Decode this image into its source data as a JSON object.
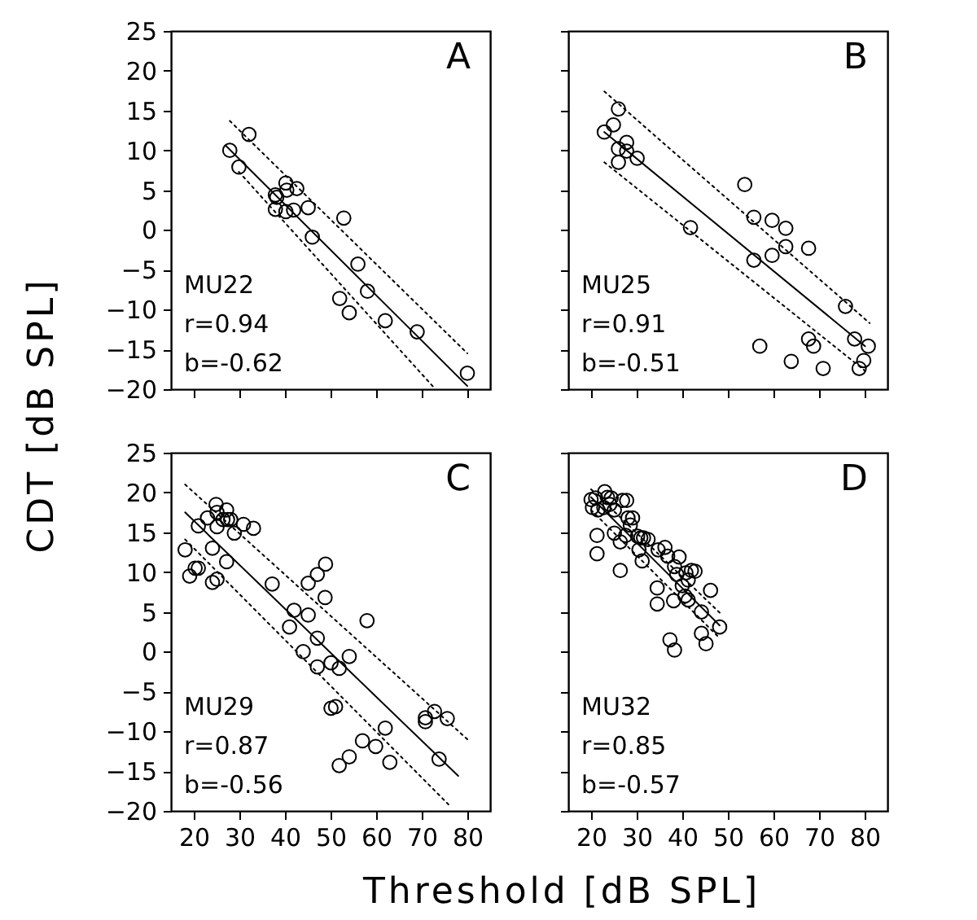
{
  "chart_data": [
    {
      "type": "scatter",
      "ylabel": "CDT [dB SPL]",
      "annotations": [
        "A",
        "MU22",
        "r=0.94",
        "b=-0.62"
      ],
      "xlim": [
        15,
        85
      ],
      "ylim": [
        -20,
        25
      ],
      "xticks": [
        20,
        30,
        40,
        50,
        60,
        70,
        80
      ],
      "yticks": [
        -20,
        -15,
        -10,
        -5,
        0,
        5,
        10,
        15,
        20,
        25
      ],
      "tick_labels": "y",
      "series": [
        {
          "type": "scatter",
          "marker": "circle",
          "color": "#000000",
          "x": [
            27.9,
            32.1,
            29.9,
            37.9,
            38.2,
            40.2,
            40.4,
            42.6,
            37.9,
            40.2,
            41.9,
            45.1,
            52.9,
            46.0,
            56.0,
            58.1,
            52.0,
            54.1,
            62.0,
            69.0,
            80.0
          ],
          "values": [
            10.0,
            12.0,
            7.9,
            4.4,
            4.1,
            5.9,
            5.0,
            5.2,
            2.6,
            2.3,
            2.5,
            2.8,
            1.5,
            -0.9,
            -4.3,
            -7.7,
            -8.6,
            -10.4,
            -11.4,
            -12.8,
            -18.0
          ]
        },
        {
          "type": "line",
          "line_style": "solid",
          "color": "#000000",
          "x": [
            27,
            80
          ],
          "values": [
            10.6,
            -19.6
          ]
        },
        {
          "type": "line",
          "line_style": "dotted",
          "color": "#000000",
          "x": [
            27.9,
            80
          ],
          "values": [
            13.7,
            -15.5
          ]
        },
        {
          "type": "line",
          "line_style": "dotted",
          "color": "#000000",
          "x": [
            29.9,
            73
          ],
          "values": [
            7.3,
            -20
          ]
        }
      ]
    },
    {
      "type": "scatter",
      "annotations": [
        "B",
        "MU25",
        "r=0.91",
        "b=-0.51"
      ],
      "xlim": [
        15,
        85
      ],
      "ylim": [
        -20,
        25
      ],
      "xticks": [
        20,
        30,
        40,
        50,
        60,
        70,
        80
      ],
      "yticks": [
        -20,
        -15,
        -10,
        -5,
        0,
        5,
        10,
        15,
        20,
        25
      ],
      "tick_labels": false,
      "series": [
        {
          "type": "scatter",
          "marker": "circle",
          "color": "#000000",
          "x": [
            26.0,
            24.9,
            22.9,
            27.8,
            26.0,
            27.8,
            30.1,
            26.0,
            53.7,
            41.8,
            55.7,
            59.7,
            62.7,
            62.7,
            67.7,
            59.7,
            55.7,
            75.8,
            67.7,
            68.8,
            77.8,
            80.8,
            79.8,
            78.8,
            70.9,
            63.9,
            57.0
          ],
          "values": [
            15.2,
            13.2,
            12.3,
            11.0,
            10.2,
            9.9,
            9.0,
            8.5,
            5.7,
            0.3,
            1.6,
            1.2,
            0.2,
            -2.1,
            -2.3,
            -3.2,
            -3.8,
            -9.6,
            -13.7,
            -14.6,
            -13.7,
            -14.6,
            -16.4,
            -17.4,
            -17.4,
            -16.5,
            -14.6
          ]
        },
        {
          "type": "line",
          "line_style": "solid",
          "color": "#000000",
          "x": [
            22.9,
            80.1
          ],
          "values": [
            12.3,
            -14.6
          ]
        },
        {
          "type": "line",
          "line_style": "dotted",
          "color": "#000000",
          "x": [
            22.9,
            81.1
          ],
          "values": [
            17.4,
            -11.7
          ]
        },
        {
          "type": "line",
          "line_style": "dotted",
          "color": "#000000",
          "x": [
            22.9,
            80.1
          ],
          "values": [
            8.5,
            -17.7
          ]
        }
      ]
    },
    {
      "type": "scatter",
      "xlabel": "Threshold [dB SPL]",
      "annotations": [
        "C",
        "MU29",
        "r=0.87",
        "b=-0.56"
      ],
      "xlim": [
        15,
        85
      ],
      "ylim": [
        -20,
        25
      ],
      "xticks": [
        20,
        30,
        40,
        50,
        60,
        70,
        80
      ],
      "yticks": [
        -20,
        -15,
        -10,
        -5,
        0,
        5,
        10,
        15,
        20,
        25
      ],
      "series": [
        {
          "type": "scatter",
          "marker": "circle",
          "color": "#000000",
          "x": [
            18.1,
            19.1,
            20.3,
            21.0,
            21.0,
            23.0,
            24.9,
            25.1,
            25.1,
            26.4,
            27.2,
            27.4,
            28.1,
            28.9,
            30.9,
            33.1,
            24.1,
            27.2,
            24.1,
            25.1,
            37.2,
            45.1,
            47.1,
            48.9,
            48.8,
            58.0,
            42.0,
            45.1,
            41.0,
            47.1,
            44.0,
            47.1,
            50.1,
            51.9,
            54.1,
            50.1,
            51.1,
            57.0,
            59.9,
            62.0,
            63.0,
            54.1,
            51.9,
            70.8,
            70.8,
            72.8,
            75.6,
            73.8
          ],
          "values": [
            12.8,
            9.5,
            10.5,
            10.5,
            15.8,
            16.8,
            18.5,
            17.5,
            15.7,
            16.6,
            17.8,
            16.6,
            16.6,
            14.9,
            16.0,
            15.5,
            13.0,
            11.3,
            8.7,
            9.1,
            8.5,
            8.6,
            9.7,
            11.0,
            6.8,
            3.9,
            5.2,
            4.6,
            3.1,
            1.7,
            0.0,
            -1.9,
            -1.4,
            -2.1,
            -0.6,
            -7.1,
            -6.9,
            -11.2,
            -11.9,
            -9.6,
            -13.9,
            -13.2,
            -14.3,
            -8.3,
            -8.8,
            -7.5,
            -8.4,
            -13.5
          ]
        },
        {
          "type": "line",
          "line_style": "solid",
          "color": "#000000",
          "x": [
            18.1,
            78
          ],
          "values": [
            17.5,
            -15.6
          ]
        },
        {
          "type": "line",
          "line_style": "dotted",
          "color": "#000000",
          "x": [
            18.1,
            80
          ],
          "values": [
            21.0,
            -11.0
          ]
        },
        {
          "type": "line",
          "line_style": "dotted",
          "color": "#000000",
          "x": [
            18.1,
            76.4
          ],
          "values": [
            14.1,
            -19.5
          ]
        }
      ]
    },
    {
      "type": "scatter",
      "annotations": [
        "D",
        "MU32",
        "r=0.85",
        "b=-0.57"
      ],
      "xlim": [
        15,
        85
      ],
      "ylim": [
        -20,
        25
      ],
      "xticks": [
        20,
        30,
        40,
        50,
        60,
        70,
        80
      ],
      "yticks": [
        -20,
        -15,
        -10,
        -5,
        0,
        5,
        10,
        15,
        20,
        25
      ],
      "tick_labels": "x",
      "series": [
        {
          "type": "scatter",
          "marker": "circle",
          "color": "#000000",
          "x": [
            20.0,
            20.3,
            21.0,
            21.5,
            23.0,
            23.6,
            24.4,
            24.1,
            25.1,
            22.8,
            26.9,
            27.8,
            28.1,
            29.1,
            28.6,
            25.1,
            26.4,
            27.6,
            30.2,
            30.9,
            31.5,
            32.5,
            21.3,
            21.3,
            26.4,
            30.5,
            31.2,
            34.7,
            36.2,
            36.8,
            39.3,
            38.3,
            38.8,
            40.8,
            42.0,
            42.8,
            41.3,
            40.0,
            34.5,
            34.5,
            38.1,
            40.6,
            41.3,
            46.2,
            44.2,
            48.2,
            44.2,
            45.2,
            37.3,
            38.3
          ],
          "values": [
            19.1,
            18.1,
            19.3,
            17.8,
            20.1,
            19.4,
            19.3,
            18.5,
            17.8,
            18.1,
            19.0,
            19.0,
            16.8,
            16.8,
            15.9,
            14.9,
            13.8,
            14.6,
            14.5,
            14.3,
            14.3,
            14.1,
            14.6,
            12.3,
            10.2,
            12.8,
            11.4,
            12.8,
            13.1,
            12.0,
            11.9,
            10.7,
            9.7,
            9.9,
            10.2,
            10.1,
            9.0,
            8.3,
            8.0,
            6.0,
            6.4,
            7.0,
            6.5,
            7.7,
            5.0,
            3.1,
            2.3,
            1.0,
            1.5,
            0.2
          ]
        },
        {
          "type": "line",
          "line_style": "solid",
          "color": "#000000",
          "x": [
            20,
            48.2
          ],
          "values": [
            19.4,
            3.3
          ]
        },
        {
          "type": "line",
          "line_style": "dotted",
          "color": "#000000",
          "x": [
            20,
            48.2
          ],
          "values": [
            20.4,
            4.9
          ]
        },
        {
          "type": "line",
          "line_style": "dotted",
          "color": "#000000",
          "x": [
            20,
            48.2
          ],
          "values": [
            17.8,
            1.7
          ]
        }
      ]
    }
  ]
}
